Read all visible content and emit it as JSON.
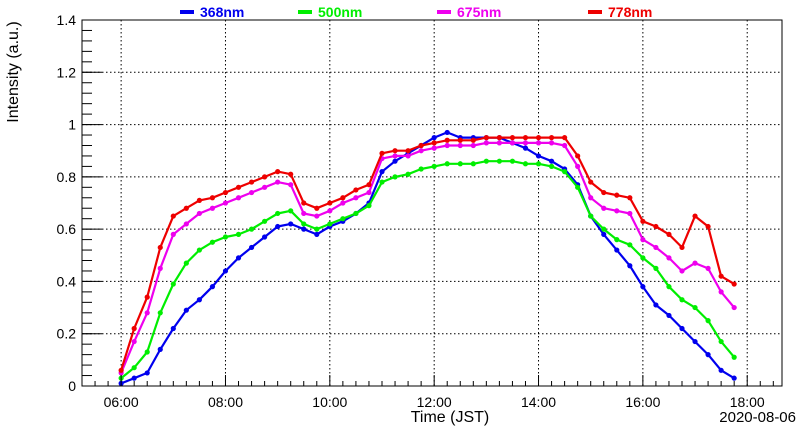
{
  "chart_data": {
    "type": "scatter",
    "title": "",
    "xlabel": "Time (JST)",
    "ylabel": "Intensity (a.u.)",
    "date": "2020-08-06",
    "xlim": [
      "05:15",
      "18:40"
    ],
    "ylim": [
      0,
      1.4
    ],
    "x_ticks": [
      "06:00",
      "08:00",
      "10:00",
      "12:00",
      "14:00",
      "16:00",
      "18:00"
    ],
    "y_ticks": [
      "0",
      "0.2",
      "0.4",
      "0.6",
      "0.8",
      "1",
      "1.2",
      "1.4"
    ],
    "grid": true,
    "legend_position": "top",
    "x": [
      "06:00",
      "06:15",
      "06:30",
      "06:45",
      "07:00",
      "07:15",
      "07:30",
      "07:45",
      "08:00",
      "08:15",
      "08:30",
      "08:45",
      "09:00",
      "09:15",
      "09:30",
      "09:45",
      "10:00",
      "10:15",
      "10:30",
      "10:45",
      "11:00",
      "11:15",
      "11:30",
      "11:45",
      "12:00",
      "12:15",
      "12:30",
      "12:45",
      "13:00",
      "13:15",
      "13:30",
      "13:45",
      "14:00",
      "14:15",
      "14:30",
      "14:45",
      "15:00",
      "15:15",
      "15:30",
      "15:45",
      "16:00",
      "16:15",
      "16:30",
      "16:45",
      "17:00",
      "17:15",
      "17:30",
      "17:45"
    ],
    "series": [
      {
        "name": "368nm",
        "color": "#0000ee",
        "values": [
          0.01,
          0.03,
          0.05,
          0.14,
          0.22,
          0.29,
          0.33,
          0.38,
          0.44,
          0.49,
          0.53,
          0.57,
          0.61,
          0.62,
          0.6,
          0.58,
          0.61,
          0.63,
          0.66,
          0.7,
          0.82,
          0.86,
          0.89,
          0.92,
          0.95,
          0.97,
          0.95,
          0.95,
          0.95,
          0.95,
          0.93,
          0.91,
          0.88,
          0.86,
          0.83,
          0.77,
          0.65,
          0.58,
          0.52,
          0.46,
          0.38,
          0.31,
          0.27,
          0.22,
          0.17,
          0.12,
          0.06,
          0.03
        ]
      },
      {
        "name": "500nm",
        "color": "#00ee00",
        "values": [
          0.03,
          0.07,
          0.13,
          0.28,
          0.39,
          0.47,
          0.52,
          0.55,
          0.57,
          0.58,
          0.6,
          0.63,
          0.66,
          0.67,
          0.62,
          0.6,
          0.62,
          0.64,
          0.66,
          0.69,
          0.78,
          0.8,
          0.81,
          0.83,
          0.84,
          0.85,
          0.85,
          0.85,
          0.86,
          0.86,
          0.86,
          0.85,
          0.85,
          0.84,
          0.82,
          0.76,
          0.65,
          0.6,
          0.56,
          0.54,
          0.49,
          0.45,
          0.38,
          0.33,
          0.3,
          0.25,
          0.17,
          0.11
        ]
      },
      {
        "name": "675nm",
        "color": "#ee00ee",
        "values": [
          0.05,
          0.17,
          0.28,
          0.45,
          0.58,
          0.62,
          0.66,
          0.68,
          0.7,
          0.72,
          0.74,
          0.76,
          0.78,
          0.77,
          0.66,
          0.65,
          0.67,
          0.7,
          0.72,
          0.74,
          0.87,
          0.88,
          0.88,
          0.9,
          0.91,
          0.92,
          0.92,
          0.92,
          0.93,
          0.93,
          0.93,
          0.93,
          0.93,
          0.93,
          0.92,
          0.84,
          0.72,
          0.68,
          0.67,
          0.66,
          0.56,
          0.53,
          0.49,
          0.44,
          0.47,
          0.45,
          0.36,
          0.3
        ]
      },
      {
        "name": "778nm",
        "color": "#ee0000",
        "values": [
          0.06,
          0.22,
          0.34,
          0.53,
          0.65,
          0.68,
          0.71,
          0.72,
          0.74,
          0.76,
          0.78,
          0.8,
          0.82,
          0.81,
          0.7,
          0.68,
          0.7,
          0.72,
          0.75,
          0.77,
          0.89,
          0.9,
          0.9,
          0.92,
          0.93,
          0.94,
          0.94,
          0.94,
          0.95,
          0.95,
          0.95,
          0.95,
          0.95,
          0.95,
          0.95,
          0.88,
          0.78,
          0.74,
          0.73,
          0.72,
          0.63,
          0.61,
          0.58,
          0.53,
          0.65,
          0.61,
          0.42,
          0.39
        ]
      }
    ]
  }
}
